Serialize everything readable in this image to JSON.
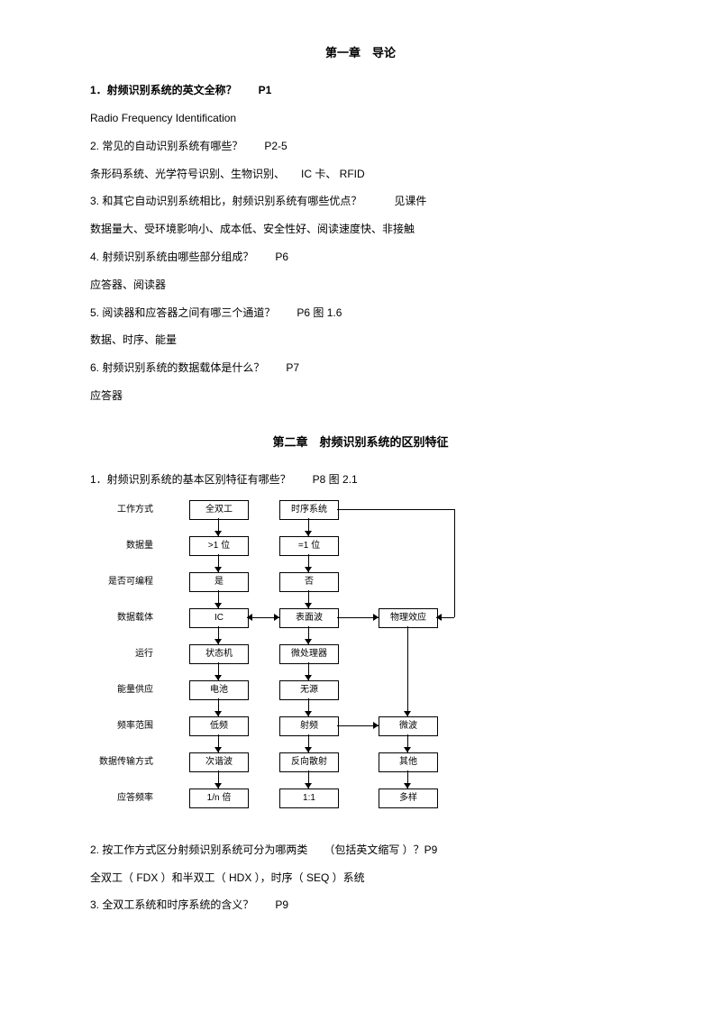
{
  "chapter1": {
    "title": "第一章　导论",
    "q1": "1．射频识别系统的英文全称？　　P1",
    "a1": "Radio Frequency Identification",
    "q2": "2. 常见的自动识别系统有哪些？　　P2-5",
    "a2": "条形码系统、光学符号识别、生物识别、　　IC 卡、 RFID",
    "q3": "3. 和其它自动识别系统相比，射频识别系统有哪些优点？　　　见课件",
    "a3": "数据量大、受环境影响小、成本低、安全性好、阅读速度快、非接触",
    "q4": "4. 射频识别系统由哪些部分组成？　　P6",
    "a4": "应答器、阅读器",
    "q5": "5. 阅读器和应答器之间有哪三个通道？　　P6  图 1.6",
    "a5": "数据、时序、能量",
    "q6": "6. 射频识别系统的数据载体是什么？　　P7",
    "a6": "应答器"
  },
  "chapter2": {
    "title": "第二章　射频识别系统的区别特征",
    "q1": "1．射频识别系统的基本区别特征有哪些？　　P8  图 2.1",
    "q2": "2. 按工作方式区分射频识别系统可分为哪两类　　（包括英文缩写 ）？P9",
    "a2": "全双工（ FDX ）和半双工（  HDX ），时序（ SEQ ）系统",
    "q3": "3. 全双工系统和时序系统的含义？　　P9"
  },
  "flowchart": {
    "labels": [
      "工作方式",
      "数据量",
      "是否可编程",
      "数据载体",
      "运行",
      "能量供应",
      "频率范围",
      "数据传输方式",
      "应答频率"
    ],
    "col1": [
      "全双工",
      ">1 位",
      "是",
      "IC",
      "状态机",
      "电池",
      "低频",
      "次谐波",
      "1/n 倍"
    ],
    "col2": [
      "时序系统",
      "=1 位",
      "否",
      "表面波",
      "微处理器",
      "无源",
      "射频",
      "反向散射",
      "1:1"
    ],
    "col3": {
      "r3": "物理效应",
      "r6": "微波",
      "r7": "其他",
      "r8": "多样"
    }
  }
}
